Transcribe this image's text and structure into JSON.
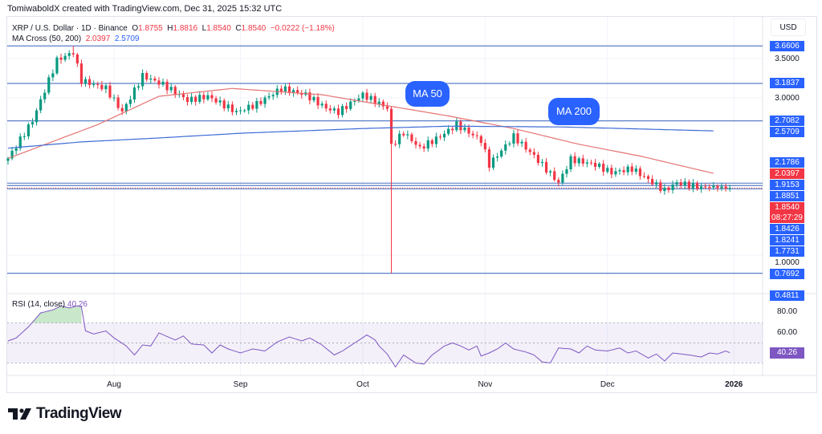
{
  "credit": "TomiwaboldX created with TradingView.com, Dec 31, 2025 15:32 UTC",
  "legend": {
    "symbol": "XRP / U.S. Dollar · 1D · Binance",
    "o_label": "O",
    "o": "1.8755",
    "h_label": "H",
    "h": "1.8816",
    "l_label": "L",
    "l": "1.8540",
    "c_label": "C",
    "c": "1.8540",
    "change": "−0.0222 (−1.18%)",
    "ma_name": "MA Cross (50, 200)",
    "ma50": "2.0397",
    "ma200": "2.5709"
  },
  "currency": "USD",
  "annotations": {
    "ma50": "MA 50",
    "ma200": "MA 200"
  },
  "countdown": "08:27:29",
  "brand": "TradingView",
  "colors": {
    "up": "#089981",
    "down": "#f23645",
    "ma50": "#e57373",
    "ma200": "#3d6bd6",
    "level": "#5b7fc7",
    "label": "#2962ff",
    "rsi": "#7e57c2"
  },
  "chart_data": [
    {
      "type": "candlestick",
      "title": "XRP / U.S. Dollar · 1D · Binance",
      "ylim": [
        0.45,
        3.72
      ],
      "x_ticks": [
        {
          "label": "Aug",
          "day": 26
        },
        {
          "label": "Sep",
          "day": 57
        },
        {
          "label": "Oct",
          "day": 87
        },
        {
          "label": "Nov",
          "day": 117
        },
        {
          "label": "Dec",
          "day": 147
        },
        {
          "label": "2026",
          "day": 178
        }
      ],
      "y_ticks": [
        "3.5000",
        "3.0000",
        "1.0000"
      ],
      "close_keypoints": [
        [
          0,
          2.23
        ],
        [
          6,
          2.71
        ],
        [
          12,
          3.48
        ],
        [
          16,
          3.58
        ],
        [
          18,
          3.22
        ],
        [
          24,
          3.12
        ],
        [
          28,
          2.82
        ],
        [
          33,
          3.28
        ],
        [
          38,
          3.17
        ],
        [
          44,
          2.97
        ],
        [
          49,
          3.02
        ],
        [
          56,
          2.82
        ],
        [
          61,
          2.92
        ],
        [
          67,
          3.12
        ],
        [
          73,
          3.04
        ],
        [
          78,
          2.87
        ],
        [
          81,
          2.82
        ],
        [
          87,
          3.04
        ],
        [
          92,
          2.9
        ],
        [
          93,
          2.87
        ],
        [
          94,
          2.39
        ],
        [
          97,
          2.56
        ],
        [
          101,
          2.36
        ],
        [
          106,
          2.51
        ],
        [
          110,
          2.66
        ],
        [
          116,
          2.46
        ],
        [
          118,
          2.15
        ],
        [
          124,
          2.51
        ],
        [
          129,
          2.26
        ],
        [
          135,
          1.92
        ],
        [
          138,
          2.22
        ],
        [
          144,
          2.15
        ],
        [
          148,
          2.05
        ],
        [
          153,
          2.1
        ],
        [
          161,
          1.82
        ],
        [
          164,
          1.92
        ],
        [
          170,
          1.86
        ],
        [
          173,
          1.87
        ],
        [
          177,
          1.854
        ]
      ],
      "wicks": [
        {
          "day": 94,
          "low": 0.7692
        },
        {
          "day": 16,
          "high": 3.6606
        }
      ],
      "ma50_keypoints": [
        [
          0,
          2.23
        ],
        [
          22,
          2.66
        ],
        [
          37,
          3.02
        ],
        [
          55,
          3.12
        ],
        [
          77,
          3.04
        ],
        [
          93,
          2.9
        ],
        [
          108,
          2.77
        ],
        [
          124,
          2.61
        ],
        [
          140,
          2.41
        ],
        [
          155,
          2.26
        ],
        [
          173,
          2.04
        ]
      ],
      "ma200_keypoints": [
        [
          0,
          2.36
        ],
        [
          18,
          2.44
        ],
        [
          37,
          2.49
        ],
        [
          57,
          2.55
        ],
        [
          87,
          2.61
        ],
        [
          108,
          2.64
        ],
        [
          136,
          2.63
        ],
        [
          173,
          2.58
        ]
      ],
      "levels": [
        3.6606,
        3.1837,
        2.7082,
        1.9153,
        1.8851,
        1.8426,
        0.7692
      ],
      "price_labels": [
        {
          "value": 3.6606,
          "text": "3.6606",
          "style": "blue"
        },
        {
          "value": 3.5,
          "text": "3.5000",
          "style": "plain"
        },
        {
          "value": 3.1837,
          "text": "3.1837",
          "style": "blue"
        },
        {
          "value": 3.0,
          "text": "3.0000",
          "style": "plain"
        },
        {
          "value": 2.7082,
          "text": "2.7082",
          "style": "blue"
        },
        {
          "value": 2.5709,
          "text": "2.5709",
          "style": "blue"
        },
        {
          "value": 2.1786,
          "text": "2.1786",
          "style": "blue"
        },
        {
          "value": 2.0397,
          "text": "2.0397",
          "style": "red"
        },
        {
          "value": 1.9153,
          "text": "1.9153",
          "style": "blue"
        },
        {
          "value": 1.8851,
          "text": "1.8851",
          "style": "blue"
        },
        {
          "value": 1.854,
          "text": "1.8540",
          "style": "red"
        },
        {
          "value": 1.8426,
          "text": "1.8426",
          "style": "blue"
        },
        {
          "value": 1.8241,
          "text": "1.8241",
          "style": "blue"
        },
        {
          "value": 1.7731,
          "text": "1.7731",
          "style": "blue"
        },
        {
          "value": 1.0,
          "text": "1.0000",
          "style": "plain"
        },
        {
          "value": 0.7692,
          "text": "0.7692",
          "style": "blue"
        },
        {
          "value": 0.4811,
          "text": "0.4811",
          "style": "blue"
        }
      ]
    },
    {
      "type": "line",
      "title": "RSI (14, close)",
      "current": "40.26",
      "ylim": [
        20,
        95
      ],
      "bands": [
        30,
        70
      ],
      "y_ticks": [
        "80.00",
        "60.00"
      ],
      "keypoints": [
        [
          0,
          52
        ],
        [
          2,
          55
        ],
        [
          5,
          66
        ],
        [
          8,
          80
        ],
        [
          11,
          83
        ],
        [
          13,
          87
        ],
        [
          15,
          85
        ],
        [
          17,
          87
        ],
        [
          18,
          86
        ],
        [
          19,
          62
        ],
        [
          21,
          59
        ],
        [
          24,
          62
        ],
        [
          26,
          55
        ],
        [
          29,
          47
        ],
        [
          31,
          38
        ],
        [
          33,
          48
        ],
        [
          35,
          47
        ],
        [
          37,
          60
        ],
        [
          41,
          53
        ],
        [
          43,
          57
        ],
        [
          45,
          49
        ],
        [
          48,
          48
        ],
        [
          50,
          40
        ],
        [
          52,
          48
        ],
        [
          54,
          44
        ],
        [
          57,
          40
        ],
        [
          60,
          44
        ],
        [
          63,
          42
        ],
        [
          66,
          51
        ],
        [
          69,
          56
        ],
        [
          72,
          52
        ],
        [
          74,
          55
        ],
        [
          77,
          48
        ],
        [
          80,
          38
        ],
        [
          82,
          42
        ],
        [
          85,
          50
        ],
        [
          88,
          58
        ],
        [
          90,
          53
        ],
        [
          91,
          47
        ],
        [
          93,
          39
        ],
        [
          95,
          26
        ],
        [
          97,
          38
        ],
        [
          100,
          30
        ],
        [
          102,
          29
        ],
        [
          104,
          38
        ],
        [
          107,
          47
        ],
        [
          109,
          50
        ],
        [
          111,
          47
        ],
        [
          113,
          43
        ],
        [
          115,
          47
        ],
        [
          116,
          37
        ],
        [
          118,
          40
        ],
        [
          120,
          44
        ],
        [
          122,
          50
        ],
        [
          124,
          44
        ],
        [
          127,
          41
        ],
        [
          129,
          38
        ],
        [
          131,
          31
        ],
        [
          133,
          30
        ],
        [
          135,
          45
        ],
        [
          138,
          44
        ],
        [
          140,
          40
        ],
        [
          142,
          47
        ],
        [
          144,
          43
        ],
        [
          147,
          42
        ],
        [
          150,
          45
        ],
        [
          152,
          40
        ],
        [
          154,
          42
        ],
        [
          157,
          35
        ],
        [
          159,
          39
        ],
        [
          161,
          32
        ],
        [
          163,
          40
        ],
        [
          167,
          38
        ],
        [
          170,
          36
        ],
        [
          172,
          40
        ],
        [
          174,
          39
        ],
        [
          176,
          42
        ],
        [
          177,
          40.26
        ]
      ]
    }
  ]
}
